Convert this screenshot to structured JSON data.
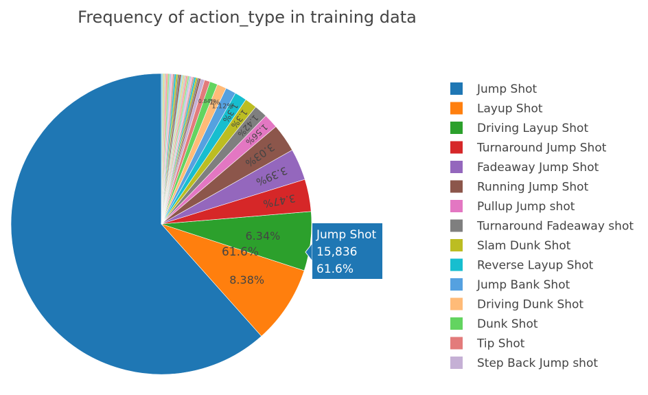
{
  "chart_data": {
    "type": "pie",
    "title": "Frequency of action_type in training data",
    "labels": [
      "Jump Shot",
      "Layup Shot",
      "Driving Layup Shot",
      "Turnaround Jump Shot",
      "Fadeaway Jump Shot",
      "Running Jump Shot",
      "Pullup Jump shot",
      "Turnaround Fadeaway shot",
      "Slam Dunk Shot",
      "Reverse Layup Shot",
      "Jump Bank Shot",
      "Driving Dunk Shot",
      "Dunk Shot",
      "Tip Shot",
      "Step Back Jump shot"
    ],
    "values": [
      61.6,
      8.38,
      6.34,
      3.47,
      3.39,
      3.03,
      1.56,
      1.42,
      1.3,
      1.3,
      1.12,
      1.0,
      0.84,
      0.6,
      0.42
    ],
    "slice_labels": [
      "61.6%",
      "8.38%",
      "6.34%",
      "3.47%",
      "3.39%",
      "3.03%",
      "1.56%",
      "1.42%",
      "1.3%",
      "1.3%",
      "1.12%",
      "1%",
      "0.84%",
      "",
      ""
    ],
    "other_small_categories_percent": 4.24,
    "colors": [
      "#1f77b4",
      "#ff7f0e",
      "#2ca02c",
      "#d62728",
      "#9467bd",
      "#8c564b",
      "#e377c2",
      "#7f7f7f",
      "#bcbd22",
      "#17becf",
      "#55a1e0",
      "#ffbb78",
      "#63d460",
      "#e37b7b",
      "#c5b0d5"
    ],
    "other_colors": [
      "#8c564b",
      "#7f7f7f",
      "#bcbd22",
      "#17becf",
      "#c49c94",
      "#f7b6d2",
      "#aec7e8",
      "#98df8a",
      "#ff9896",
      "#c7c7c7",
      "#dbdb8d",
      "#9edae5"
    ],
    "legend_position": "right",
    "hover": {
      "label": "Jump Shot",
      "value": "15,836",
      "percent": "61.6%"
    }
  }
}
